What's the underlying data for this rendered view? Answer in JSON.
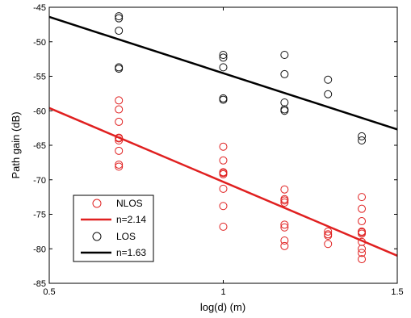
{
  "chart_data": {
    "type": "scatter",
    "xlabel": "log(d) (m)",
    "ylabel": "Path gain (dB)",
    "xlim": [
      0.5,
      1.5
    ],
    "ylim": [
      -85,
      -45
    ],
    "x_ticks": [
      "0.5",
      "1",
      "1.5"
    ],
    "y_ticks": [
      "-45",
      "-50",
      "-55",
      "-60",
      "-65",
      "-70",
      "-75",
      "-80",
      "-85"
    ],
    "grid": false,
    "legend_position": "bottom-left",
    "series": [
      {
        "name": "NLOS",
        "kind": "scatter",
        "marker": "circle",
        "color": "#e02020",
        "x": [
          0.7,
          0.7,
          0.7,
          0.7,
          0.7,
          0.7,
          0.7,
          0.7,
          0.7,
          1.0,
          1.0,
          1.0,
          1.0,
          1.0,
          1.0,
          1.0,
          1.0,
          1.176,
          1.176,
          1.176,
          1.176,
          1.176,
          1.176,
          1.176,
          1.176,
          1.301,
          1.301,
          1.301,
          1.301,
          1.398,
          1.398,
          1.398,
          1.398,
          1.398,
          1.398,
          1.398,
          1.398,
          1.398,
          1.398
        ],
        "y": [
          -58.5,
          -59.8,
          -61.6,
          -63.9,
          -64.3,
          -65.8,
          -67.8,
          -68.1,
          -64.0,
          -65.2,
          -67.2,
          -68.9,
          -69.2,
          -69.0,
          -71.3,
          -73.8,
          -76.8,
          -71.4,
          -72.8,
          -73.3,
          -76.5,
          -76.9,
          -78.8,
          -79.6,
          -73.0,
          -77.5,
          -77.9,
          -78.1,
          -79.3,
          -72.5,
          -74.2,
          -76.0,
          -77.6,
          -77.8,
          -79.0,
          -80.0,
          -80.6,
          -81.5,
          -77.5
        ]
      },
      {
        "name": "n=2.14",
        "kind": "line",
        "color": "#e02020",
        "x": [
          0.5,
          1.5
        ],
        "y": [
          -59.6,
          -81.0
        ]
      },
      {
        "name": "LOS",
        "kind": "scatter",
        "marker": "circle",
        "color": "#111111",
        "x": [
          0.7,
          0.7,
          0.7,
          0.7,
          0.7,
          1.0,
          1.0,
          1.0,
          1.0,
          1.0,
          1.176,
          1.176,
          1.176,
          1.176,
          1.176,
          1.301,
          1.301,
          1.398,
          1.398
        ],
        "y": [
          -46.3,
          -46.6,
          -48.4,
          -53.7,
          -53.9,
          -51.9,
          -52.3,
          -53.7,
          -58.2,
          -58.4,
          -51.9,
          -54.7,
          -58.8,
          -59.8,
          -60.0,
          -55.5,
          -57.6,
          -63.7,
          -64.3
        ]
      },
      {
        "name": "n=1.63",
        "kind": "line",
        "color": "#000000",
        "x": [
          0.5,
          1.5
        ],
        "y": [
          -46.4,
          -62.7
        ]
      }
    ]
  }
}
